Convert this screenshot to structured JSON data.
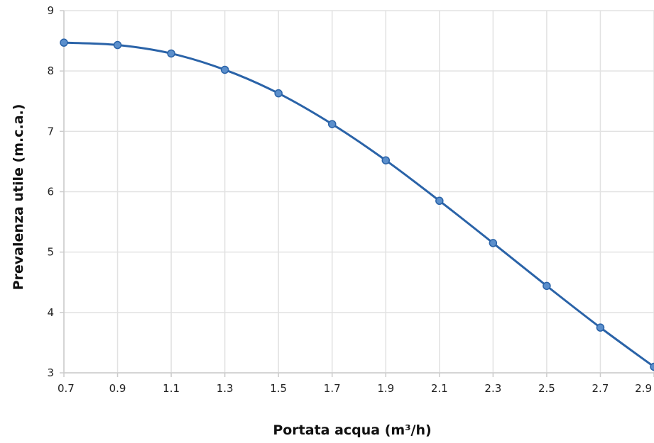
{
  "chart_data": {
    "type": "line",
    "xlabel": "Portata acqua (m³/h)",
    "ylabel": "Prevalenza utile (m.c.a.)",
    "x": [
      0.7,
      0.9,
      1.1,
      1.3,
      1.5,
      1.7,
      1.9,
      2.1,
      2.3,
      2.5,
      2.7,
      2.9
    ],
    "xticks": [
      "0.7",
      "0.9",
      "1.1",
      "1.3",
      "1.5",
      "1.7",
      "1.9",
      "2.1",
      "2.3",
      "2.5",
      "2.7",
      "2.9"
    ],
    "yticks": [
      "3",
      "4",
      "5",
      "6",
      "7",
      "8",
      "9"
    ],
    "xlim": [
      0.7,
      2.9
    ],
    "ylim": [
      3,
      9
    ],
    "grid": true,
    "series": [
      {
        "values": [
          8.47,
          8.43,
          8.29,
          8.02,
          7.63,
          7.12,
          6.52,
          5.85,
          5.15,
          4.44,
          3.75,
          3.1
        ],
        "color": "#2a63a8",
        "marker_fill": "#5b8fcc",
        "marker_stroke": "#2a63a8"
      }
    ],
    "grid_color": "#e2e2e2",
    "axis_color": "#cccccc"
  }
}
